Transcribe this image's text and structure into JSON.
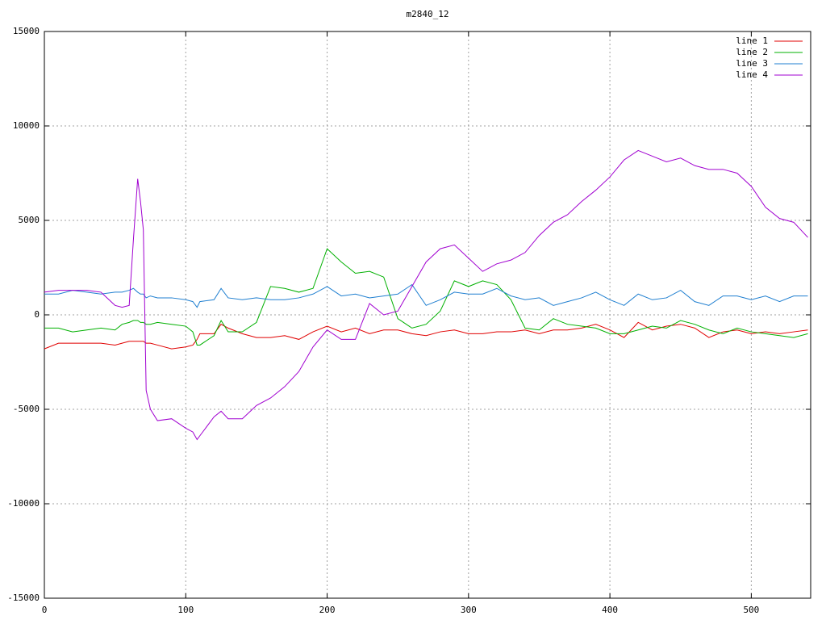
{
  "chart_data": {
    "type": "line",
    "title": "m2840_12",
    "x": [
      0,
      10,
      20,
      30,
      40,
      50,
      55,
      60,
      63,
      66,
      68,
      70,
      72,
      75,
      80,
      90,
      100,
      105,
      108,
      110,
      120,
      125,
      130,
      140,
      150,
      160,
      170,
      180,
      190,
      200,
      210,
      220,
      230,
      240,
      250,
      260,
      270,
      280,
      290,
      300,
      310,
      320,
      330,
      340,
      350,
      360,
      370,
      380,
      390,
      400,
      410,
      420,
      430,
      440,
      450,
      460,
      470,
      480,
      490,
      500,
      510,
      520,
      530,
      540
    ],
    "series": [
      {
        "name": "line 1",
        "color": "#e00000",
        "values": [
          -1800,
          -1500,
          -1500,
          -1500,
          -1500,
          -1600,
          -1500,
          -1400,
          -1400,
          -1400,
          -1400,
          -1400,
          -1500,
          -1500,
          -1600,
          -1800,
          -1700,
          -1600,
          -1300,
          -1000,
          -1000,
          -500,
          -700,
          -1000,
          -1200,
          -1200,
          -1100,
          -1300,
          -900,
          -600,
          -900,
          -700,
          -1000,
          -800,
          -800,
          -1000,
          -1100,
          -900,
          -800,
          -1000,
          -1000,
          -900,
          -900,
          -800,
          -1000,
          -800,
          -800,
          -700,
          -500,
          -800,
          -1200,
          -400,
          -800,
          -600,
          -500,
          -700,
          -1200,
          -900,
          -800,
          -1000,
          -900,
          -1000,
          -900,
          -800
        ]
      },
      {
        "name": "line 2",
        "color": "#00b000",
        "values": [
          -700,
          -700,
          -900,
          -800,
          -700,
          -800,
          -500,
          -400,
          -300,
          -300,
          -400,
          -400,
          -500,
          -500,
          -400,
          -500,
          -600,
          -900,
          -1600,
          -1600,
          -1100,
          -300,
          -900,
          -900,
          -400,
          1500,
          1400,
          1200,
          1400,
          3500,
          2800,
          2200,
          2300,
          2000,
          -200,
          -700,
          -500,
          200,
          1800,
          1500,
          1800,
          1600,
          800,
          -700,
          -800,
          -200,
          -500,
          -600,
          -700,
          -1000,
          -1000,
          -800,
          -600,
          -700,
          -300,
          -500,
          -800,
          -1000,
          -700,
          -900,
          -1000,
          -1100,
          -1200,
          -1000
        ]
      },
      {
        "name": "line 3",
        "color": "#1f7fd0",
        "values": [
          1100,
          1100,
          1300,
          1200,
          1100,
          1200,
          1200,
          1300,
          1400,
          1200,
          1100,
          1100,
          900,
          1000,
          900,
          900,
          800,
          700,
          400,
          700,
          800,
          1400,
          900,
          800,
          900,
          800,
          800,
          900,
          1100,
          1500,
          1000,
          1100,
          900,
          1000,
          1100,
          1600,
          500,
          800,
          1200,
          1100,
          1100,
          1400,
          1000,
          800,
          900,
          500,
          700,
          900,
          1200,
          800,
          500,
          1100,
          800,
          900,
          1300,
          700,
          500,
          1000,
          1000,
          800,
          1000,
          700,
          1000,
          1000
        ]
      },
      {
        "name": "line 4",
        "color": "#a000d0",
        "values": [
          1200,
          1300,
          1300,
          1300,
          1200,
          500,
          400,
          500,
          4000,
          7200,
          6000,
          4500,
          -4000,
          -5000,
          -5600,
          -5500,
          -6000,
          -6200,
          -6600,
          -6400,
          -5400,
          -5100,
          -5500,
          -5500,
          -4800,
          -4400,
          -3800,
          -3000,
          -1700,
          -800,
          -1300,
          -1300,
          600,
          0,
          200,
          1500,
          2800,
          3500,
          3700,
          3000,
          2300,
          2700,
          2900,
          3300,
          4200,
          4900,
          5300,
          6000,
          6600,
          7300,
          8200,
          8700,
          8400,
          8100,
          8300,
          7900,
          7700,
          7700,
          7500,
          6800,
          5700,
          5100,
          4900,
          4100
        ]
      }
    ],
    "xlim": [
      0,
      542
    ],
    "ylim": [
      -15000,
      15000
    ],
    "xticks": [
      0,
      100,
      200,
      300,
      400,
      500
    ],
    "yticks": [
      -15000,
      -10000,
      -5000,
      0,
      5000,
      10000,
      15000
    ],
    "grid": true,
    "legend": "top-right"
  }
}
